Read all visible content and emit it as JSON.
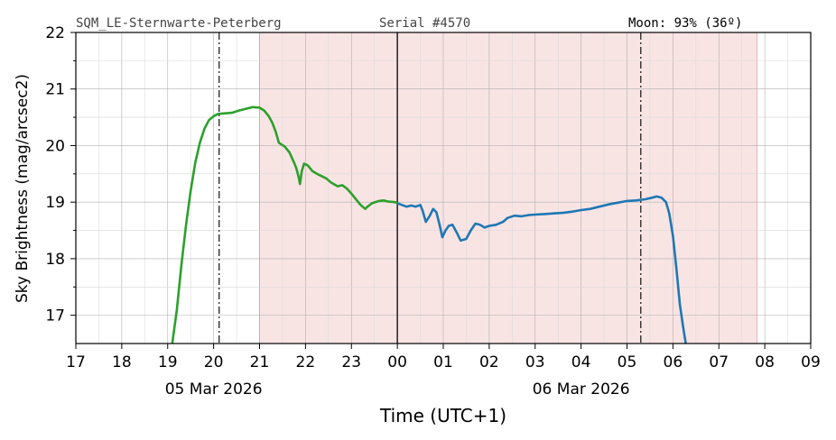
{
  "header": {
    "station": "SQM_LE-Sternwarte-Peterberg",
    "serial": "Serial #4570",
    "moon": "Moon: 93% (36º)"
  },
  "chart_data": {
    "type": "line",
    "xlabel": "Time (UTC+1)",
    "ylabel": "Sky Brightness (mag/arcsec2)",
    "xlim_hours": [
      17,
      33
    ],
    "ylim": [
      16.5,
      22
    ],
    "yticks": [
      17,
      18,
      19,
      20,
      21,
      22
    ],
    "xtick_labels": [
      "17",
      "18",
      "19",
      "20",
      "21",
      "22",
      "23",
      "00",
      "01",
      "02",
      "03",
      "04",
      "05",
      "06",
      "07",
      "08",
      "09"
    ],
    "date_labels": [
      {
        "text": "05 Mar 2026",
        "at_hour": 20
      },
      {
        "text": "06 Mar 2026",
        "at_hour": 28
      }
    ],
    "grid": true,
    "night_shading": {
      "from_hour": 21,
      "to_hour": 31.83,
      "color": "#f9e4e4"
    },
    "midnight_hour": 24,
    "moon_markers_hours": [
      20.12,
      29.3
    ],
    "series": [
      {
        "color": "#2ca02c",
        "points": [
          [
            19.1,
            16.5
          ],
          [
            19.2,
            17.1
          ],
          [
            19.3,
            17.9
          ],
          [
            19.4,
            18.6
          ],
          [
            19.5,
            19.2
          ],
          [
            19.6,
            19.7
          ],
          [
            19.7,
            20.05
          ],
          [
            19.8,
            20.3
          ],
          [
            19.9,
            20.45
          ],
          [
            20.0,
            20.52
          ],
          [
            20.1,
            20.56
          ],
          [
            20.25,
            20.57
          ],
          [
            20.4,
            20.58
          ],
          [
            20.55,
            20.62
          ],
          [
            20.7,
            20.65
          ],
          [
            20.85,
            20.68
          ],
          [
            21.0,
            20.67
          ],
          [
            21.1,
            20.62
          ],
          [
            21.2,
            20.52
          ],
          [
            21.28,
            20.4
          ],
          [
            21.35,
            20.25
          ],
          [
            21.42,
            20.05
          ],
          [
            21.55,
            19.98
          ],
          [
            21.65,
            19.88
          ],
          [
            21.75,
            19.7
          ],
          [
            21.8,
            19.6
          ],
          [
            21.85,
            19.45
          ],
          [
            21.88,
            19.32
          ],
          [
            21.92,
            19.55
          ],
          [
            21.97,
            19.68
          ],
          [
            22.05,
            19.65
          ],
          [
            22.15,
            19.55
          ],
          [
            22.3,
            19.48
          ],
          [
            22.45,
            19.42
          ],
          [
            22.55,
            19.35
          ],
          [
            22.7,
            19.28
          ],
          [
            22.8,
            19.3
          ],
          [
            22.9,
            19.24
          ],
          [
            23.0,
            19.15
          ],
          [
            23.1,
            19.05
          ],
          [
            23.2,
            18.95
          ],
          [
            23.3,
            18.88
          ],
          [
            23.35,
            18.92
          ],
          [
            23.45,
            18.98
          ],
          [
            23.6,
            19.02
          ],
          [
            23.7,
            19.03
          ],
          [
            23.8,
            19.01
          ],
          [
            23.95,
            19.0
          ],
          [
            24.0,
            18.98
          ]
        ]
      },
      {
        "color": "#1f77b4",
        "points": [
          [
            24.0,
            18.98
          ],
          [
            24.1,
            18.95
          ],
          [
            24.2,
            18.92
          ],
          [
            24.3,
            18.94
          ],
          [
            24.4,
            18.92
          ],
          [
            24.5,
            18.95
          ],
          [
            24.55,
            18.85
          ],
          [
            24.62,
            18.65
          ],
          [
            24.7,
            18.75
          ],
          [
            24.78,
            18.88
          ],
          [
            24.85,
            18.82
          ],
          [
            24.92,
            18.6
          ],
          [
            24.98,
            18.38
          ],
          [
            25.05,
            18.5
          ],
          [
            25.12,
            18.58
          ],
          [
            25.2,
            18.6
          ],
          [
            25.3,
            18.45
          ],
          [
            25.38,
            18.32
          ],
          [
            25.5,
            18.35
          ],
          [
            25.6,
            18.5
          ],
          [
            25.7,
            18.62
          ],
          [
            25.8,
            18.6
          ],
          [
            25.9,
            18.55
          ],
          [
            26.0,
            18.58
          ],
          [
            26.15,
            18.6
          ],
          [
            26.3,
            18.65
          ],
          [
            26.4,
            18.72
          ],
          [
            26.55,
            18.76
          ],
          [
            26.7,
            18.75
          ],
          [
            26.85,
            18.77
          ],
          [
            27.0,
            18.78
          ],
          [
            27.2,
            18.79
          ],
          [
            27.4,
            18.8
          ],
          [
            27.6,
            18.81
          ],
          [
            27.8,
            18.83
          ],
          [
            28.0,
            18.86
          ],
          [
            28.2,
            18.88
          ],
          [
            28.4,
            18.92
          ],
          [
            28.6,
            18.96
          ],
          [
            28.8,
            18.99
          ],
          [
            29.0,
            19.02
          ],
          [
            29.2,
            19.03
          ],
          [
            29.4,
            19.05
          ],
          [
            29.55,
            19.08
          ],
          [
            29.65,
            19.1
          ],
          [
            29.75,
            19.08
          ],
          [
            29.85,
            19.0
          ],
          [
            29.92,
            18.8
          ],
          [
            30.0,
            18.4
          ],
          [
            30.08,
            17.8
          ],
          [
            30.15,
            17.2
          ],
          [
            30.22,
            16.8
          ],
          [
            30.28,
            16.5
          ]
        ]
      }
    ]
  }
}
